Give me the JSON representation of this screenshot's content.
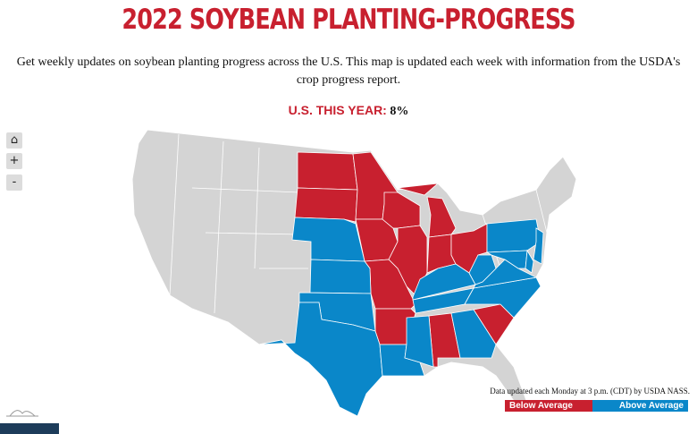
{
  "title": "2022 SOYBEAN PLANTING-PROGRESS",
  "subtitle": "Get weekly updates on soybean planting progress across the U.S. This map is updated each week with information from the USDA's crop progress report.",
  "us_summary": {
    "label": "U.S. THIS YEAR:",
    "value": "8%"
  },
  "controls": {
    "home_icon": "home-icon",
    "zoom_in": "+",
    "zoom_out": "-"
  },
  "note": "Data updated each Monday at 3 p.m. (CDT) by USDA NASS.",
  "legend": [
    {
      "label": "Below Average",
      "color": "#c8202f"
    },
    {
      "label": "Above Average",
      "color": "#0a87c9"
    }
  ],
  "colors": {
    "no_data": "#d4d4d4",
    "below": "#c8202f",
    "above": "#0a87c9"
  },
  "states": {
    "ND": "below",
    "SD": "below",
    "MN": "below",
    "IA": "below",
    "WI": "below",
    "IL": "below",
    "MO": "below",
    "AR": "below",
    "MI": "below",
    "IN": "below",
    "OH": "below",
    "AL": "below",
    "SC": "below",
    "NE": "above",
    "KS": "above",
    "OK": "above",
    "TX": "above",
    "LA": "above",
    "MS": "above",
    "TN": "above",
    "KY": "above",
    "GA": "above",
    "NC": "above",
    "VA": "above",
    "WV": "above",
    "PA": "above",
    "MD": "above",
    "DE": "above",
    "NJ": "above"
  }
}
